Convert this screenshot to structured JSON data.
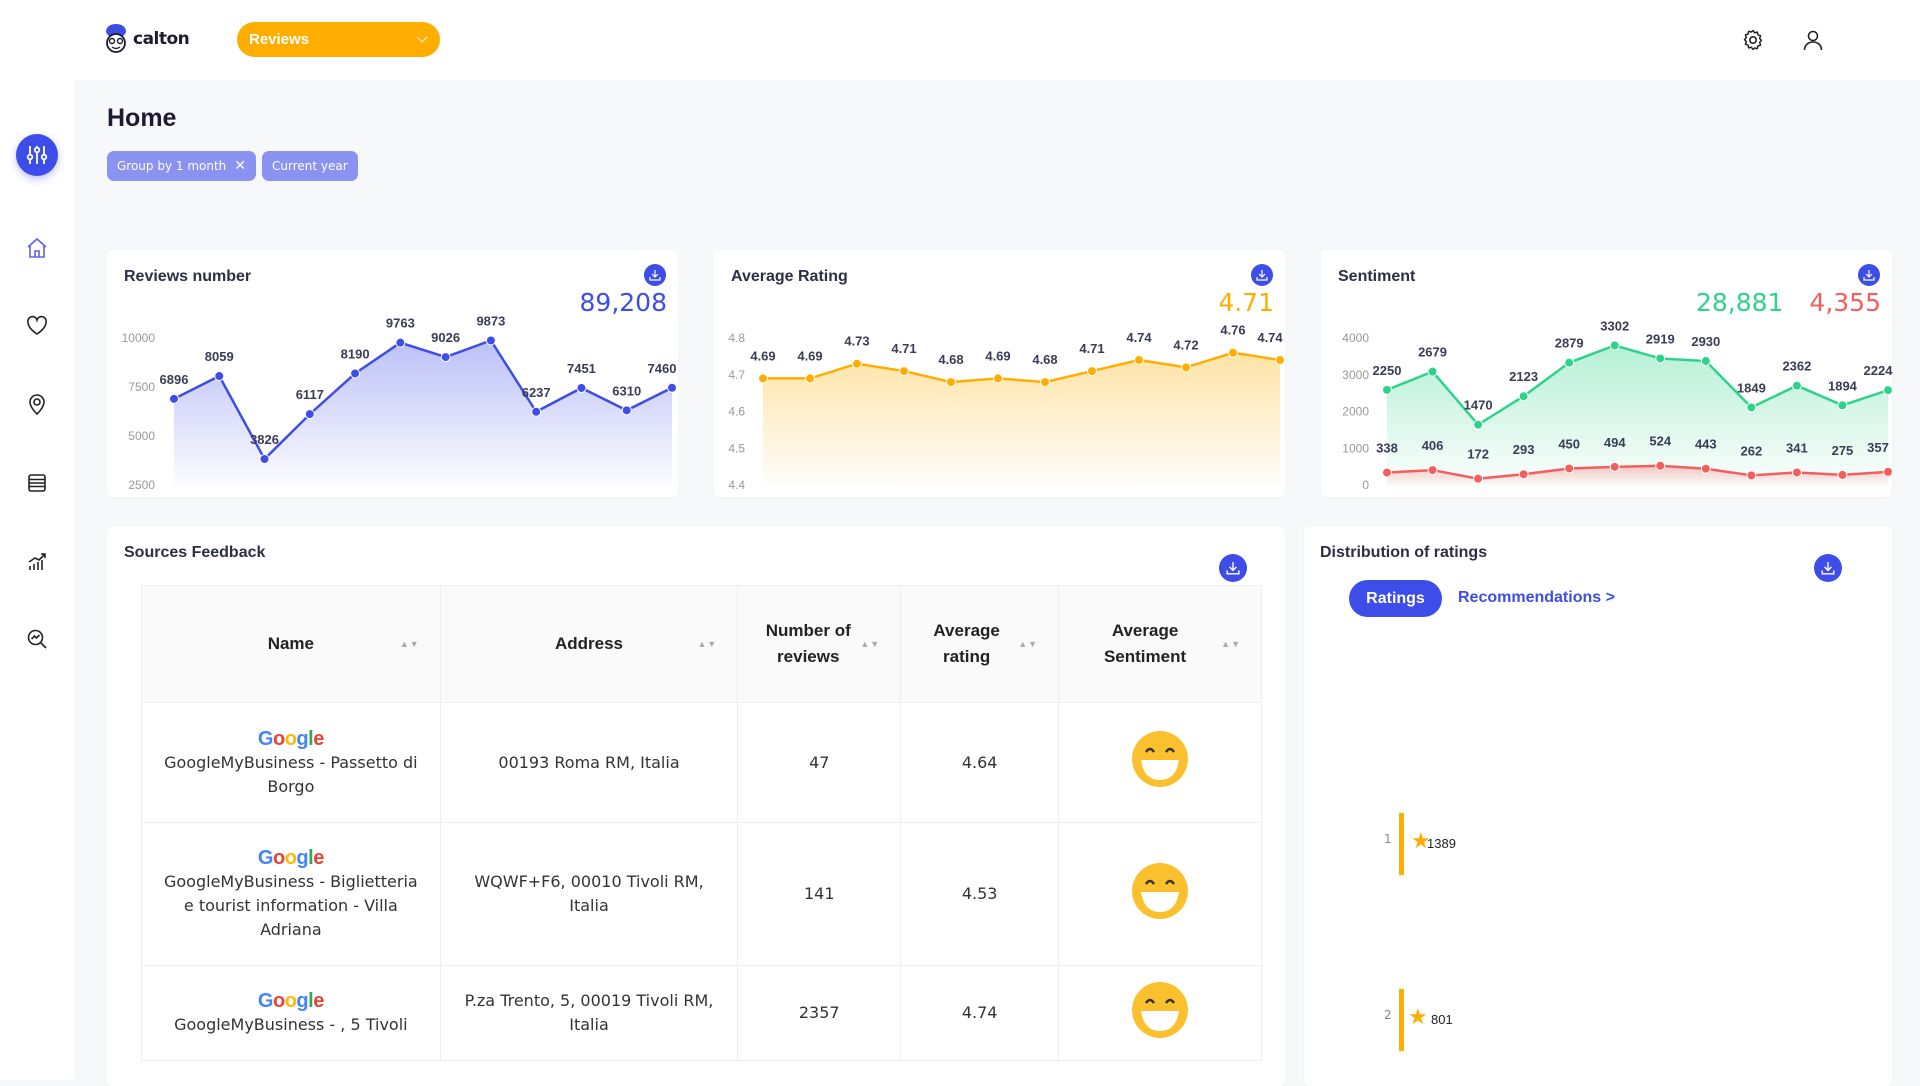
{
  "header": {
    "brand": "calton",
    "module_select": "Reviews",
    "icons": [
      "settings-icon",
      "user-icon"
    ]
  },
  "sidebar": {
    "items": [
      {
        "name": "home",
        "icon": "home-icon",
        "active": true
      },
      {
        "name": "favorites",
        "icon": "heart-icon"
      },
      {
        "name": "locations",
        "icon": "map-pin-icon"
      },
      {
        "name": "data",
        "icon": "database-icon"
      },
      {
        "name": "analytics",
        "icon": "chart-growth-icon"
      },
      {
        "name": "insights",
        "icon": "search-chart-icon"
      }
    ]
  },
  "page": {
    "title": "Home",
    "filters": [
      {
        "label": "Group by 1 month",
        "removable": true
      },
      {
        "label": "Current year",
        "removable": false
      }
    ]
  },
  "colors": {
    "accent": "#3d4de8",
    "orange": "#ffae00",
    "positive": "#2ed38a",
    "negative": "#f25f5c"
  },
  "cards": {
    "reviews": {
      "title": "Reviews number",
      "total": "89,208"
    },
    "rating": {
      "title": "Average Rating",
      "total": "4.71"
    },
    "sentiment": {
      "title": "Sentiment",
      "positive_total": "28,881",
      "negative_total": "4,355"
    }
  },
  "chart_data": [
    {
      "type": "area",
      "title": "Reviews number",
      "ylim": [
        2500,
        10000
      ],
      "yticks": [
        "10000",
        "7500",
        "5000",
        "2500"
      ],
      "series": [
        {
          "values": [
            6896,
            8059,
            3826,
            6117,
            8190,
            9763,
            9026,
            9873,
            6237,
            7451,
            6310,
            7460
          ],
          "color": "#3d4de8"
        }
      ]
    },
    {
      "type": "area",
      "title": "Average Rating",
      "ylim": [
        4.4,
        4.8
      ],
      "yticks": [
        "4.8",
        "4.7",
        "4.6",
        "4.5",
        "4.4"
      ],
      "series": [
        {
          "values": [
            4.69,
            4.69,
            4.73,
            4.71,
            4.68,
            4.69,
            4.68,
            4.71,
            4.74,
            4.72,
            4.76,
            4.74
          ],
          "color": "#ffae00"
        }
      ]
    },
    {
      "type": "area",
      "title": "Sentiment",
      "stacked": true,
      "ylim": [
        0,
        4000
      ],
      "yticks": [
        "4000",
        "3000",
        "2000",
        "1000",
        "0"
      ],
      "series": [
        {
          "values": [
            2250,
            2679,
            1470,
            2123,
            2879,
            3302,
            2919,
            2930,
            1849,
            2362,
            1894,
            2224
          ],
          "color": "#2ed38a"
        },
        {
          "values": [
            338,
            406,
            172,
            293,
            450,
            494,
            524,
            443,
            262,
            341,
            275,
            357
          ],
          "color": "#f25f5c"
        }
      ]
    }
  ],
  "sources": {
    "title": "Sources Feedback",
    "columns": [
      "Name",
      "Address",
      "Number of reviews",
      "Average rating",
      "Average Sentiment"
    ],
    "rows": [
      {
        "source": "Google",
        "name": "GoogleMyBusiness - Passetto di Borgo",
        "address": "00193 Roma RM, Italia",
        "reviews": "47",
        "rating": "4.64",
        "sentiment": "grinning-face-icon"
      },
      {
        "source": "Google",
        "name": "GoogleMyBusiness - Biglietteria e tourist information - Villa Adriana",
        "address": "WQWF+F6, 00010 Tivoli RM, Italia",
        "reviews": "141",
        "rating": "4.53",
        "sentiment": "grinning-face-icon"
      },
      {
        "source": "Google",
        "name": "GoogleMyBusiness - , 5 Tivoli",
        "address": "P.za Trento, 5, 00019 Tivoli RM, Italia",
        "reviews": "2357",
        "rating": "4.74",
        "sentiment": "grinning-face-icon"
      }
    ]
  },
  "distribution": {
    "title": "Distribution of ratings",
    "tabs": {
      "active": "Ratings",
      "link": "Recommendations >"
    },
    "bars": [
      {
        "label": "1",
        "value": "1389"
      },
      {
        "label": "2",
        "value": "801"
      }
    ]
  }
}
